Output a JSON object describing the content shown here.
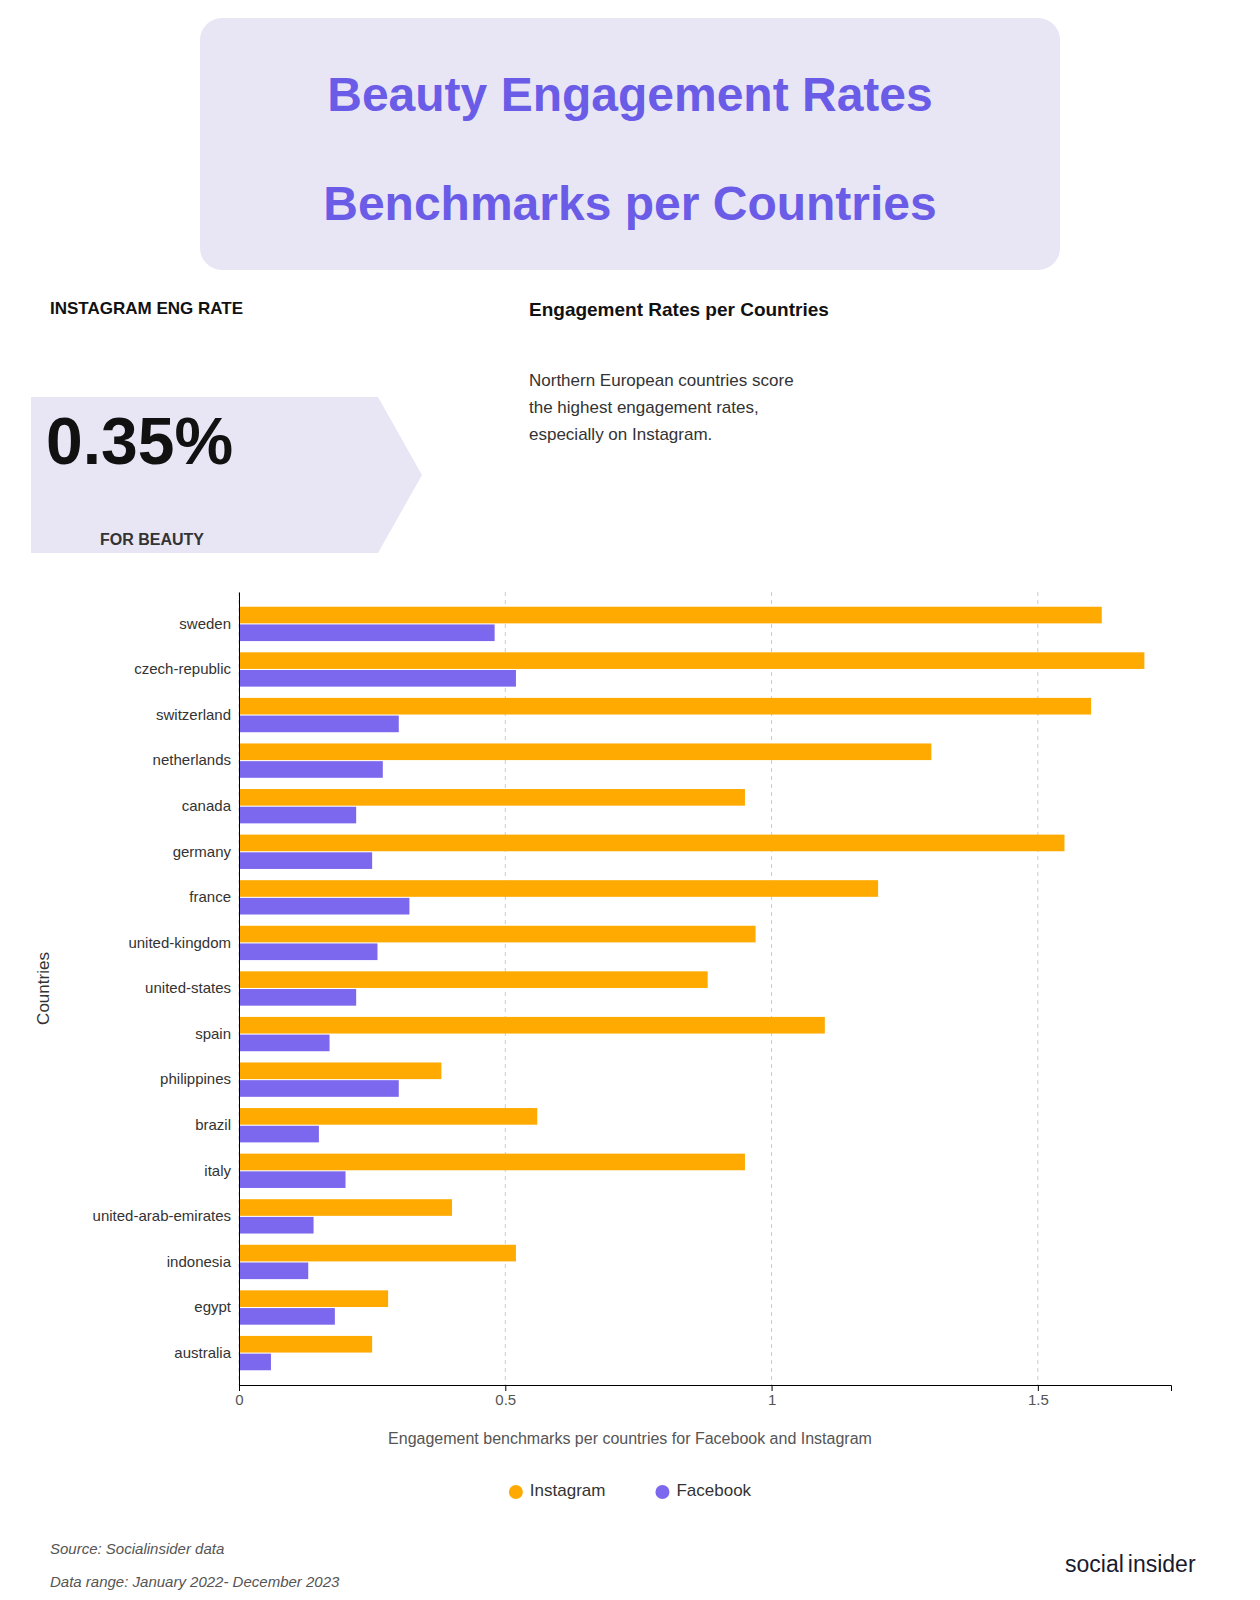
{
  "chart_data": {
    "type": "bar",
    "orientation": "horizontal",
    "title": "Beauty Engagement Rates",
    "subtitle": "Benchmarks per Countries",
    "y_label": "Countries",
    "annotations": [
      "INSTAGRAM ENG RATE",
      "0.35%",
      "FOR BEAUTY",
      "Engagement Rates per Countries",
      "Northern European countries score\nthe highest engagement rates,\nespecially on Instagram.",
      "Engagement benchmarks per countries for Facebook and Instagram",
      "Source: Socialinsider data",
      "Data range: January 2022- December 2023",
      "social",
      "insider"
    ],
    "categories": [
      "sweden",
      "czech-republic",
      "switzerland",
      "netherlands",
      "canada",
      "germany",
      "france",
      "united-kingdom",
      "united-states",
      "spain",
      "philippines",
      "brazil",
      "italy",
      "united-arab-emirates",
      "indonesia",
      "egypt",
      "australia"
    ],
    "series": [
      {
        "name": "Instagram",
        "color": "#FFAA00",
        "values": [
          1.62,
          1.7,
          1.6,
          1.3,
          0.95,
          1.55,
          1.2,
          0.97,
          0.88,
          1.1,
          0.38,
          0.56,
          0.95,
          0.4,
          0.52,
          0.28,
          0.25
        ]
      },
      {
        "name": "Facebook",
        "color": "#7B68EE",
        "values": [
          0.48,
          0.52,
          0.3,
          0.27,
          0.22,
          0.25,
          0.32,
          0.26,
          0.22,
          0.17,
          0.3,
          0.15,
          0.2,
          0.14,
          0.13,
          0.18,
          0.06
        ]
      }
    ],
    "xlim": [
      0,
      1.75
    ],
    "xticks": [
      0,
      0.5,
      1,
      1.5
    ],
    "grid": true,
    "legend": "bottom"
  }
}
